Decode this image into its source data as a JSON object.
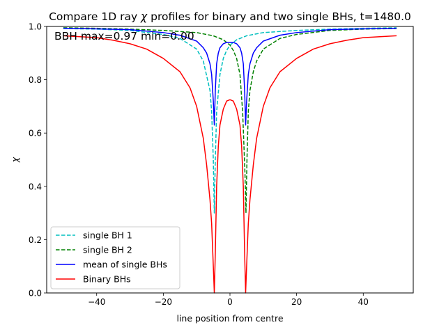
{
  "chart_data": {
    "type": "line",
    "title_prefix": "Compare 1D ray ",
    "title_symbol": "χ",
    "title_suffix": " profiles for binary and two single BHs, t=1480.0",
    "annotation": "BBH max=0.97 min=0.00",
    "xlabel": "line position from centre",
    "ylabel": "χ",
    "xlim": [
      -55,
      55
    ],
    "ylim": [
      0.0,
      1.0
    ],
    "xticks": [
      -40,
      -20,
      0,
      20,
      40
    ],
    "xtick_labels": [
      "−40",
      "−20",
      "0",
      "20",
      "40"
    ],
    "yticks": [
      0.0,
      0.2,
      0.4,
      0.6,
      0.8,
      1.0
    ],
    "ytick_labels": [
      "0.0",
      "0.2",
      "0.4",
      "0.6",
      "0.8",
      "1.0"
    ],
    "legend_position": "lower-left",
    "grid": false,
    "series": [
      {
        "name": "single BH 1",
        "color": "#00bfbf",
        "dash": "dashed",
        "x": [
          -50,
          -40,
          -30,
          -20,
          -15,
          -10,
          -8,
          -6,
          -5.5,
          -5,
          -4.7,
          -4.4,
          -4,
          -3,
          -2,
          -1,
          0,
          2,
          5,
          10,
          20,
          30,
          40,
          50
        ],
        "y": [
          0.992,
          0.99,
          0.985,
          0.97,
          0.955,
          0.915,
          0.87,
          0.76,
          0.68,
          0.5,
          0.3,
          0.5,
          0.68,
          0.82,
          0.88,
          0.91,
          0.93,
          0.95,
          0.965,
          0.977,
          0.985,
          0.99,
          0.993,
          0.995
        ]
      },
      {
        "name": "single BH 2",
        "color": "#008000",
        "dash": "dashed",
        "x": [
          -50,
          -40,
          -30,
          -20,
          -10,
          -5,
          -2,
          0,
          1,
          2,
          3,
          3.8,
          4.2,
          4.5,
          4.8,
          5.1,
          5.5,
          6,
          7,
          8,
          10,
          15,
          20,
          30,
          40,
          50
        ],
        "y": [
          0.995,
          0.993,
          0.99,
          0.985,
          0.977,
          0.965,
          0.95,
          0.93,
          0.91,
          0.88,
          0.82,
          0.68,
          0.55,
          0.45,
          0.3,
          0.5,
          0.68,
          0.76,
          0.83,
          0.87,
          0.915,
          0.955,
          0.97,
          0.985,
          0.99,
          0.992
        ]
      },
      {
        "name": "mean of single BHs",
        "color": "#0000ff",
        "dash": "solid",
        "x": [
          -50,
          -40,
          -30,
          -20,
          -15,
          -10,
          -8,
          -7,
          -6,
          -5.5,
          -5,
          -4.7,
          -4.4,
          -4,
          -3.5,
          -3,
          -2,
          -1,
          0,
          1,
          2,
          3,
          3.5,
          4,
          4.4,
          4.7,
          5,
          5.5,
          6,
          7,
          8,
          10,
          15,
          20,
          30,
          40,
          50
        ],
        "y": [
          0.993,
          0.991,
          0.988,
          0.977,
          0.967,
          0.945,
          0.92,
          0.9,
          0.86,
          0.82,
          0.72,
          0.63,
          0.76,
          0.86,
          0.9,
          0.92,
          0.935,
          0.94,
          0.94,
          0.94,
          0.935,
          0.92,
          0.9,
          0.86,
          0.76,
          0.63,
          0.72,
          0.82,
          0.86,
          0.9,
          0.92,
          0.945,
          0.967,
          0.977,
          0.988,
          0.991,
          0.993
        ]
      },
      {
        "name": "Binary BHs",
        "color": "#ff0000",
        "dash": "solid",
        "x": [
          -50,
          -40,
          -35,
          -30,
          -25,
          -20,
          -15,
          -12,
          -10,
          -8,
          -7,
          -6,
          -5.5,
          -5,
          -4.7,
          -4.4,
          -4,
          -3.5,
          -3,
          -2,
          -1,
          0,
          1,
          2,
          3,
          3.5,
          4,
          4.4,
          4.7,
          5,
          5.5,
          6,
          7,
          8,
          10,
          12,
          15,
          20,
          25,
          30,
          35,
          40,
          50
        ],
        "y": [
          0.965,
          0.958,
          0.948,
          0.935,
          0.915,
          0.88,
          0.83,
          0.77,
          0.7,
          0.58,
          0.48,
          0.35,
          0.26,
          0.1,
          0.0,
          0.15,
          0.4,
          0.55,
          0.63,
          0.69,
          0.72,
          0.725,
          0.72,
          0.69,
          0.63,
          0.55,
          0.4,
          0.15,
          0.0,
          0.1,
          0.26,
          0.35,
          0.48,
          0.58,
          0.7,
          0.77,
          0.83,
          0.88,
          0.915,
          0.935,
          0.948,
          0.958,
          0.965
        ]
      }
    ]
  }
}
